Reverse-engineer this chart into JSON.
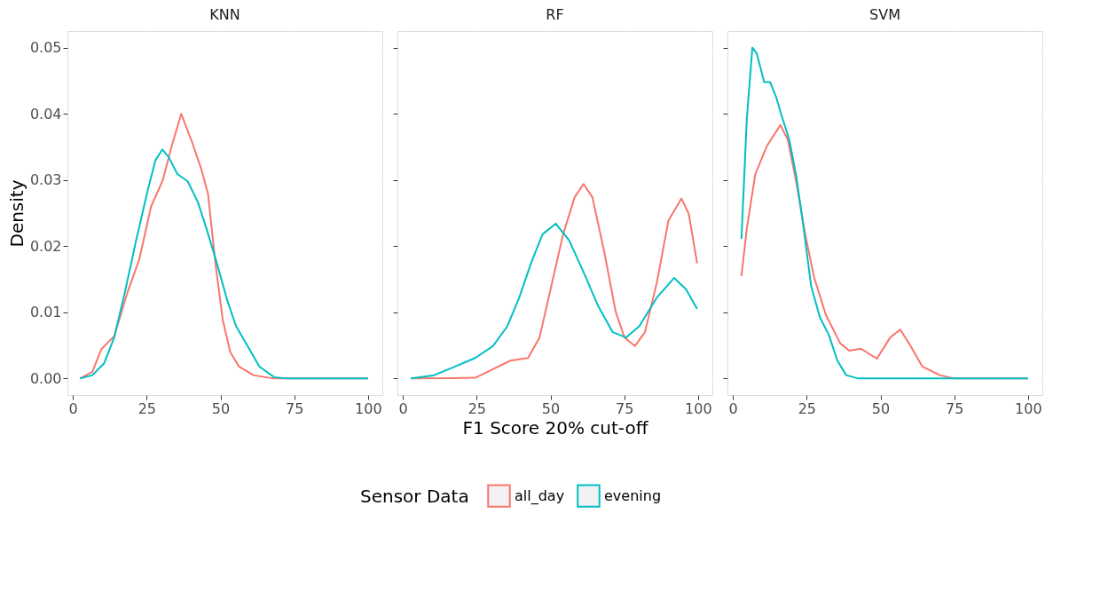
{
  "chart_data": [
    {
      "type": "line",
      "title": "KNN",
      "ylabel": "Density",
      "xlim": [
        -1.85,
        104.85
      ],
      "ylim": [
        -0.0025,
        0.0525
      ],
      "xticks": [
        0,
        25,
        50,
        75,
        100
      ],
      "yticks": [
        {
          "value": 0,
          "label": "0.00"
        },
        {
          "value": 0.01,
          "label": "0.01"
        },
        {
          "value": 0.02,
          "label": "0.02"
        },
        {
          "value": 0.03,
          "label": "0.03"
        },
        {
          "value": 0.04,
          "label": "0.04"
        },
        {
          "value": 0.05,
          "label": "0.05"
        }
      ],
      "grid": true,
      "legend": "bottom",
      "legend_title": "Sensor Data",
      "series": [
        {
          "name": "all_day",
          "color": "#f8766d",
          "x": [
            2.4,
            6.6,
            9.6,
            14,
            18.5,
            22.5,
            26.5,
            30.5,
            33.4,
            36.7,
            40.4,
            43.4,
            45.8,
            48.3,
            50.8,
            53.3,
            56.3,
            61.2,
            68,
            100
          ],
          "values": [
            0,
            0.001,
            0.0044,
            0.0064,
            0.013,
            0.018,
            0.026,
            0.03,
            0.035,
            0.04,
            0.0357,
            0.0318,
            0.0279,
            0.0174,
            0.0088,
            0.004,
            0.0018,
            0.0005,
            0,
            0
          ]
        },
        {
          "name": "evening",
          "color": "#00bfc4",
          "x": [
            2.4,
            6.6,
            10.6,
            14,
            17.6,
            21.5,
            25.5,
            28,
            30.3,
            32.4,
            35.4,
            38.9,
            42.4,
            45.3,
            48.8,
            52.3,
            55.3,
            59.2,
            63.2,
            68.2,
            72,
            100
          ],
          "values": [
            0,
            0.0005,
            0.0023,
            0.0062,
            0.013,
            0.021,
            0.0287,
            0.033,
            0.0346,
            0.0335,
            0.0309,
            0.0298,
            0.0266,
            0.0226,
            0.0174,
            0.0118,
            0.0079,
            0.0049,
            0.0018,
            0.0002,
            0,
            0
          ]
        }
      ]
    },
    {
      "type": "line",
      "title": "RF",
      "xlabel": "F1 Score 20% cut-off",
      "legend": "bottom",
      "tick_labels": "x",
      "xlim": [
        -1.85,
        104.85
      ],
      "ylim": [
        -0.0025,
        0.0525
      ],
      "xticks": [
        0,
        25,
        50,
        75,
        100
      ],
      "yticks": [
        0,
        0.01,
        0.02,
        0.03,
        0.04,
        0.05
      ],
      "grid": true,
      "series": [
        {
          "name": "all_day",
          "color": "#f8766d",
          "x": [
            2.7,
            24.5,
            30.5,
            36.4,
            42.4,
            46.3,
            50.3,
            54.3,
            58.2,
            61.2,
            64.2,
            68.2,
            72.1,
            75.1,
            78.6,
            82,
            86,
            90,
            94.4,
            96.9,
            99.7
          ],
          "values": [
            0,
            0.0001,
            0.0014,
            0.0027,
            0.0031,
            0.0062,
            0.014,
            0.0218,
            0.0274,
            0.0294,
            0.0274,
            0.0192,
            0.0101,
            0.0062,
            0.0049,
            0.007,
            0.0144,
            0.0239,
            0.0272,
            0.0248,
            0.0174
          ]
        },
        {
          "name": "evening",
          "color": "#00bfc4",
          "x": [
            2.7,
            10.6,
            16.6,
            24.5,
            30.5,
            35.4,
            39.4,
            43.4,
            47.3,
            51.8,
            56.3,
            61.2,
            66.2,
            71.1,
            75.6,
            80.1,
            86,
            91.9,
            95.9,
            99.7
          ],
          "values": [
            0,
            0.0005,
            0.0016,
            0.0031,
            0.0049,
            0.0079,
            0.0122,
            0.0174,
            0.0218,
            0.0234,
            0.0209,
            0.0161,
            0.0109,
            0.007,
            0.0062,
            0.0079,
            0.0122,
            0.0152,
            0.0135,
            0.0105
          ]
        }
      ]
    },
    {
      "type": "line",
      "title": "SVM",
      "tick_labels": "x",
      "xlim": [
        -1.85,
        104.85
      ],
      "ylim": [
        -0.0025,
        0.0525
      ],
      "xticks": [
        0,
        25,
        50,
        75,
        100
      ],
      "yticks": [
        0,
        0.01,
        0.02,
        0.03,
        0.04,
        0.05
      ],
      "grid": true,
      "legend": "bottom",
      "series": [
        {
          "name": "all_day",
          "color": "#f8766d",
          "x": [
            2.9,
            4.7,
            7.6,
            11.6,
            16.1,
            18.6,
            21.5,
            24.5,
            27.5,
            31.5,
            36.4,
            39.4,
            43.4,
            48.8,
            53.3,
            56.7,
            60.2,
            64.2,
            70.1,
            75.1,
            100
          ],
          "values": [
            0.0155,
            0.0226,
            0.0309,
            0.0352,
            0.0383,
            0.0361,
            0.0296,
            0.0218,
            0.0153,
            0.0096,
            0.0053,
            0.0042,
            0.0045,
            0.003,
            0.0062,
            0.0074,
            0.0049,
            0.0018,
            0.0005,
            0,
            0
          ]
        },
        {
          "name": "evening",
          "color": "#00bfc4",
          "x": [
            2.9,
            4.7,
            6.6,
            8.1,
            10.6,
            12.6,
            14.6,
            16.6,
            19.1,
            21.5,
            24,
            26.5,
            29.5,
            32.5,
            35.4,
            38.4,
            42.4,
            100
          ],
          "values": [
            0.0211,
            0.0391,
            0.05,
            0.0491,
            0.0448,
            0.0448,
            0.0426,
            0.0396,
            0.0361,
            0.0305,
            0.0226,
            0.014,
            0.0092,
            0.0066,
            0.0027,
            0.0005,
            0,
            0
          ]
        }
      ]
    }
  ]
}
